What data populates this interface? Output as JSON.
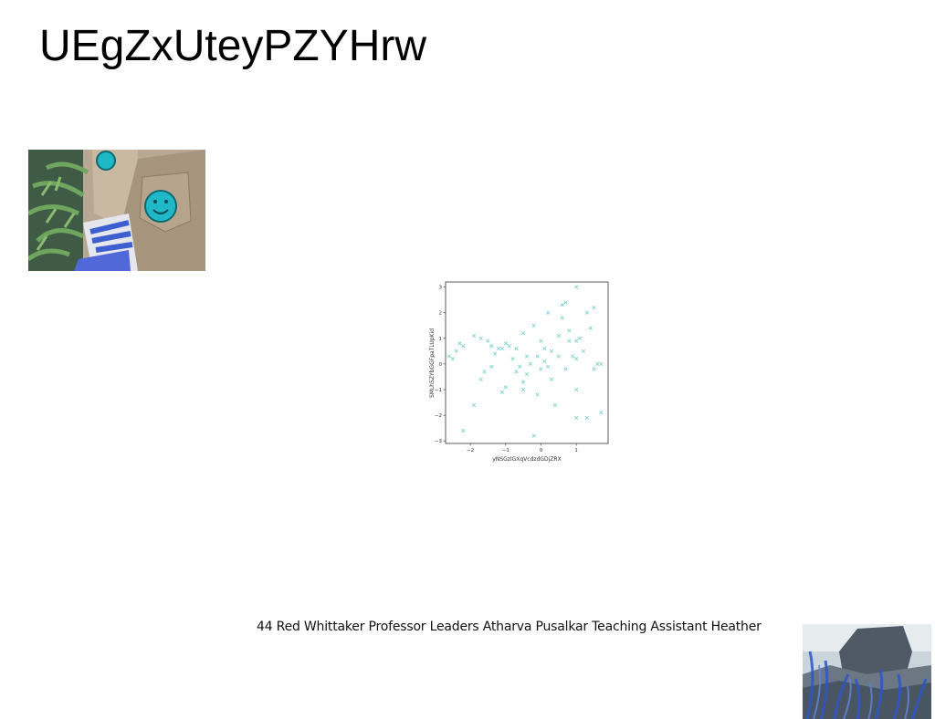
{
  "page": {
    "title": "UEgZxUteyPZYHrw",
    "caption": "44 Red Whittaker Professor Leaders Atharva Pusalkar Teaching Assistant Heather"
  },
  "images": {
    "photo1_icon": "jeans-with-smiley-patches-photo",
    "photo2_icon": "rocky-coastline-photo"
  },
  "chart_data": {
    "type": "scatter",
    "marker": "x",
    "color": "#7fd3cf",
    "xlabel": "yNSGzlGXqVcdzdGDjZRX",
    "ylabel": "SMLhSZYbGGFpaTLUpKid",
    "xlim": [
      -2.7,
      1.9
    ],
    "ylim": [
      -3.1,
      3.2
    ],
    "xticks": [
      "−2",
      "−1",
      "0",
      "1"
    ],
    "yticks": [
      "−3",
      "−2",
      "−1",
      "0",
      "1",
      "2",
      "3"
    ],
    "points": [
      [
        -2.6,
        0.3
      ],
      [
        -2.5,
        0.2
      ],
      [
        -2.4,
        0.5
      ],
      [
        -2.3,
        0.8
      ],
      [
        -2.2,
        0.7
      ],
      [
        -2.2,
        -2.6
      ],
      [
        -1.9,
        -1.6
      ],
      [
        -1.9,
        1.1
      ],
      [
        -1.7,
        -0.6
      ],
      [
        -1.7,
        1.0
      ],
      [
        -1.6,
        -0.3
      ],
      [
        -1.5,
        0.9
      ],
      [
        -1.4,
        -0.1
      ],
      [
        -1.4,
        0.7
      ],
      [
        -1.3,
        0.4
      ],
      [
        -1.2,
        0.6
      ],
      [
        -1.1,
        -1.1
      ],
      [
        -1.1,
        0.6
      ],
      [
        -1.0,
        0.8
      ],
      [
        -1.0,
        -0.9
      ],
      [
        -0.9,
        0.7
      ],
      [
        -0.8,
        0.2
      ],
      [
        -0.7,
        -0.3
      ],
      [
        -0.7,
        0.6
      ],
      [
        -0.6,
        -0.1
      ],
      [
        -0.5,
        -0.7
      ],
      [
        -0.5,
        1.2
      ],
      [
        -0.5,
        -1.0
      ],
      [
        -0.4,
        0.3
      ],
      [
        -0.4,
        -0.4
      ],
      [
        -0.3,
        0.0
      ],
      [
        -0.2,
        1.5
      ],
      [
        -0.2,
        -2.8
      ],
      [
        -0.1,
        -1.2
      ],
      [
        -0.1,
        0.3
      ],
      [
        0.0,
        -0.2
      ],
      [
        0.0,
        0.9
      ],
      [
        0.1,
        0.1
      ],
      [
        0.1,
        0.6
      ],
      [
        0.2,
        -0.1
      ],
      [
        0.2,
        2.0
      ],
      [
        0.3,
        0.5
      ],
      [
        0.3,
        -0.6
      ],
      [
        0.4,
        -1.6
      ],
      [
        0.5,
        0.3
      ],
      [
        0.5,
        1.1
      ],
      [
        0.6,
        2.3
      ],
      [
        0.6,
        1.8
      ],
      [
        0.7,
        2.4
      ],
      [
        0.7,
        -0.2
      ],
      [
        0.8,
        0.9
      ],
      [
        0.8,
        1.3
      ],
      [
        0.9,
        0.3
      ],
      [
        1.0,
        0.2
      ],
      [
        1.0,
        0.9
      ],
      [
        1.0,
        -1.0
      ],
      [
        1.0,
        -2.1
      ],
      [
        1.0,
        3.0
      ],
      [
        1.1,
        1.0
      ],
      [
        1.2,
        0.5
      ],
      [
        1.3,
        2.0
      ],
      [
        1.3,
        -2.1
      ],
      [
        1.4,
        1.4
      ],
      [
        1.5,
        -0.2
      ],
      [
        1.5,
        2.2
      ],
      [
        1.6,
        0.0
      ],
      [
        1.7,
        0.0
      ],
      [
        1.7,
        -1.9
      ]
    ]
  }
}
